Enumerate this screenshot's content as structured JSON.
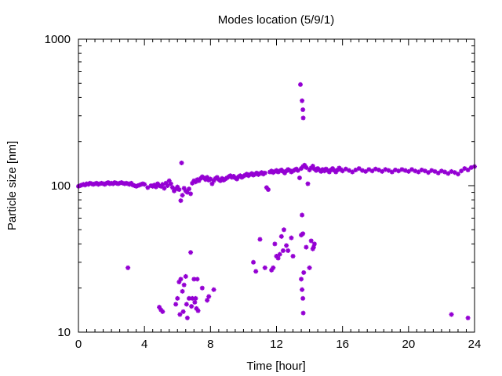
{
  "chart_data": {
    "type": "scatter",
    "title": "Modes location (5/9/1)",
    "xlabel": "Time [hour]",
    "ylabel": "Particle size [nm]",
    "xlim": [
      0,
      24
    ],
    "ylim": [
      10,
      1000
    ],
    "yscale": "log",
    "x_ticks": [
      0,
      4,
      8,
      12,
      16,
      20,
      24
    ],
    "y_ticks": [
      10,
      100,
      1000
    ],
    "grid": false,
    "legend": "none",
    "marker_color": "#9400d3",
    "series": [
      {
        "points": [
          [
            0.0,
            99
          ],
          [
            0.1,
            100
          ],
          [
            0.2,
            101
          ],
          [
            0.3,
            102
          ],
          [
            0.4,
            101
          ],
          [
            0.5,
            103
          ],
          [
            0.6,
            102
          ],
          [
            0.7,
            104
          ],
          [
            0.8,
            103
          ],
          [
            0.9,
            102
          ],
          [
            1.0,
            103
          ],
          [
            1.1,
            104
          ],
          [
            1.2,
            102
          ],
          [
            1.3,
            103
          ],
          [
            1.4,
            104
          ],
          [
            1.5,
            103
          ],
          [
            1.6,
            102
          ],
          [
            1.7,
            104
          ],
          [
            1.8,
            105
          ],
          [
            1.9,
            103
          ],
          [
            2.0,
            104
          ],
          [
            2.1,
            103
          ],
          [
            2.2,
            105
          ],
          [
            2.3,
            104
          ],
          [
            2.4,
            103
          ],
          [
            2.5,
            104
          ],
          [
            2.6,
            105
          ],
          [
            2.7,
            104
          ],
          [
            2.8,
            103
          ],
          [
            2.9,
            104
          ],
          [
            3.0,
            103
          ],
          [
            3.1,
            102
          ],
          [
            3.2,
            104
          ],
          [
            3.3,
            101
          ],
          [
            3.4,
            100
          ],
          [
            3.5,
            99
          ],
          [
            3.6,
            100
          ],
          [
            3.7,
            101
          ],
          [
            3.8,
            102
          ],
          [
            3.9,
            103
          ],
          [
            4.0,
            102
          ],
          [
            4.2,
            97
          ],
          [
            4.4,
            100
          ],
          [
            4.5,
            99
          ],
          [
            4.6,
            101
          ],
          [
            4.7,
            98
          ],
          [
            4.8,
            103
          ],
          [
            4.9,
            100
          ],
          [
            5.0,
            99
          ],
          [
            5.1,
            102
          ],
          [
            5.2,
            96
          ],
          [
            5.3,
            104
          ],
          [
            5.4,
            100
          ],
          [
            5.5,
            108
          ],
          [
            5.6,
            103
          ],
          [
            5.7,
            97
          ],
          [
            5.8,
            92
          ],
          [
            5.9,
            95
          ],
          [
            6.0,
            98
          ],
          [
            6.1,
            94
          ],
          [
            6.2,
            79
          ],
          [
            6.25,
            143
          ],
          [
            6.3,
            86
          ],
          [
            6.4,
            96
          ],
          [
            6.5,
            92
          ],
          [
            6.6,
            90
          ],
          [
            6.7,
            95
          ],
          [
            6.8,
            88
          ],
          [
            6.9,
            104
          ],
          [
            7.0,
            108
          ],
          [
            7.1,
            106
          ],
          [
            7.2,
            110
          ],
          [
            7.3,
            108
          ],
          [
            7.4,
            112
          ],
          [
            7.5,
            115
          ],
          [
            7.6,
            113
          ],
          [
            7.7,
            110
          ],
          [
            7.8,
            114
          ],
          [
            7.9,
            109
          ],
          [
            8.0,
            111
          ],
          [
            8.1,
            103
          ],
          [
            8.2,
            108
          ],
          [
            8.3,
            112
          ],
          [
            8.4,
            114
          ],
          [
            8.5,
            110
          ],
          [
            8.6,
            108
          ],
          [
            8.7,
            112
          ],
          [
            8.8,
            109
          ],
          [
            8.9,
            111
          ],
          [
            9.0,
            113
          ],
          [
            9.1,
            115
          ],
          [
            9.2,
            117
          ],
          [
            9.3,
            114
          ],
          [
            9.4,
            116
          ],
          [
            9.5,
            113
          ],
          [
            9.6,
            111
          ],
          [
            9.7,
            115
          ],
          [
            9.8,
            117
          ],
          [
            9.9,
            114
          ],
          [
            10.0,
            116
          ],
          [
            10.1,
            118
          ],
          [
            10.2,
            120
          ],
          [
            10.3,
            117
          ],
          [
            10.4,
            119
          ],
          [
            10.5,
            121
          ],
          [
            10.6,
            118
          ],
          [
            10.7,
            120
          ],
          [
            10.8,
            122
          ],
          [
            10.9,
            119
          ],
          [
            11.0,
            121
          ],
          [
            11.1,
            123
          ],
          [
            11.2,
            120
          ],
          [
            11.3,
            122
          ],
          [
            11.4,
            97
          ],
          [
            11.5,
            94
          ],
          [
            11.6,
            124
          ],
          [
            11.7,
            126
          ],
          [
            11.8,
            123
          ],
          [
            11.9,
            125
          ],
          [
            12.0,
            127
          ],
          [
            12.1,
            124
          ],
          [
            12.2,
            126
          ],
          [
            12.3,
            128
          ],
          [
            12.4,
            125
          ],
          [
            12.5,
            122
          ],
          [
            12.6,
            126
          ],
          [
            12.7,
            129
          ],
          [
            12.8,
            127
          ],
          [
            12.9,
            124
          ],
          [
            13.0,
            126
          ],
          [
            13.1,
            128
          ],
          [
            13.2,
            130
          ],
          [
            13.3,
            127
          ],
          [
            13.4,
            113
          ],
          [
            13.5,
            131
          ],
          [
            13.6,
            135
          ],
          [
            13.7,
            138
          ],
          [
            13.8,
            133
          ],
          [
            13.9,
            103
          ],
          [
            14.0,
            128
          ],
          [
            14.1,
            132
          ],
          [
            14.2,
            136
          ],
          [
            14.3,
            130
          ],
          [
            14.4,
            127
          ],
          [
            14.5,
            131
          ],
          [
            14.6,
            128
          ],
          [
            14.7,
            125
          ],
          [
            14.8,
            129
          ],
          [
            14.9,
            126
          ],
          [
            15.0,
            130
          ],
          [
            15.1,
            127
          ],
          [
            15.2,
            124
          ],
          [
            15.3,
            128
          ],
          [
            15.4,
            131
          ],
          [
            15.5,
            127
          ],
          [
            15.6,
            124
          ],
          [
            15.7,
            128
          ],
          [
            15.8,
            132
          ],
          [
            15.9,
            129
          ],
          [
            16.0,
            126
          ],
          [
            16.2,
            130
          ],
          [
            16.4,
            127
          ],
          [
            16.6,
            124
          ],
          [
            16.8,
            128
          ],
          [
            17.0,
            131
          ],
          [
            17.2,
            127
          ],
          [
            17.4,
            125
          ],
          [
            17.6,
            129
          ],
          [
            17.8,
            126
          ],
          [
            18.0,
            130
          ],
          [
            18.2,
            128
          ],
          [
            18.4,
            125
          ],
          [
            18.6,
            129
          ],
          [
            18.8,
            127
          ],
          [
            19.0,
            124
          ],
          [
            19.2,
            128
          ],
          [
            19.4,
            126
          ],
          [
            19.6,
            129
          ],
          [
            19.8,
            127
          ],
          [
            20.0,
            125
          ],
          [
            20.2,
            129
          ],
          [
            20.4,
            126
          ],
          [
            20.6,
            124
          ],
          [
            20.8,
            128
          ],
          [
            21.0,
            126
          ],
          [
            21.2,
            123
          ],
          [
            21.4,
            127
          ],
          [
            21.6,
            125
          ],
          [
            21.8,
            122
          ],
          [
            22.0,
            126
          ],
          [
            22.2,
            124
          ],
          [
            22.4,
            121
          ],
          [
            22.6,
            125
          ],
          [
            22.8,
            123
          ],
          [
            23.0,
            120
          ],
          [
            23.2,
            126
          ],
          [
            23.4,
            131
          ],
          [
            23.6,
            128
          ],
          [
            23.8,
            133
          ],
          [
            24.0,
            135
          ],
          [
            3.0,
            27.5
          ],
          [
            4.9,
            14.8
          ],
          [
            5.0,
            14.2
          ],
          [
            5.1,
            13.8
          ],
          [
            5.9,
            15.5
          ],
          [
            6.0,
            17
          ],
          [
            6.1,
            22
          ],
          [
            6.15,
            13.2
          ],
          [
            6.2,
            23
          ],
          [
            6.3,
            19
          ],
          [
            6.35,
            13.8
          ],
          [
            6.4,
            21
          ],
          [
            6.5,
            24
          ],
          [
            6.55,
            15.5
          ],
          [
            6.6,
            12.5
          ],
          [
            6.7,
            17
          ],
          [
            6.8,
            35
          ],
          [
            6.85,
            15
          ],
          [
            6.9,
            17
          ],
          [
            7.0,
            23
          ],
          [
            7.05,
            16
          ],
          [
            7.1,
            17
          ],
          [
            7.15,
            14.5
          ],
          [
            7.2,
            23
          ],
          [
            7.25,
            14
          ],
          [
            7.5,
            20
          ],
          [
            7.8,
            16.5
          ],
          [
            7.9,
            17.5
          ],
          [
            8.2,
            19.5
          ],
          [
            10.6,
            30
          ],
          [
            10.75,
            26
          ],
          [
            11.0,
            43
          ],
          [
            11.3,
            27.5
          ],
          [
            11.7,
            26.5
          ],
          [
            11.8,
            27.5
          ],
          [
            11.9,
            40
          ],
          [
            12.0,
            33
          ],
          [
            12.1,
            32
          ],
          [
            12.2,
            34
          ],
          [
            12.3,
            45
          ],
          [
            12.4,
            36
          ],
          [
            12.45,
            50
          ],
          [
            12.6,
            39
          ],
          [
            12.7,
            36
          ],
          [
            12.9,
            44
          ],
          [
            13.0,
            33
          ],
          [
            13.45,
            490
          ],
          [
            13.55,
            380
          ],
          [
            13.6,
            330
          ],
          [
            13.62,
            290
          ],
          [
            13.5,
            46
          ],
          [
            13.55,
            63
          ],
          [
            13.6,
            47
          ],
          [
            13.5,
            23
          ],
          [
            13.55,
            19.5
          ],
          [
            13.6,
            17
          ],
          [
            13.62,
            13.5
          ],
          [
            13.65,
            25.5
          ],
          [
            13.8,
            38
          ],
          [
            14.0,
            27.5
          ],
          [
            14.1,
            42
          ],
          [
            14.2,
            37
          ],
          [
            14.3,
            40
          ],
          [
            14.25,
            38
          ],
          [
            22.6,
            13.2
          ],
          [
            23.6,
            12.5
          ]
        ]
      }
    ]
  }
}
